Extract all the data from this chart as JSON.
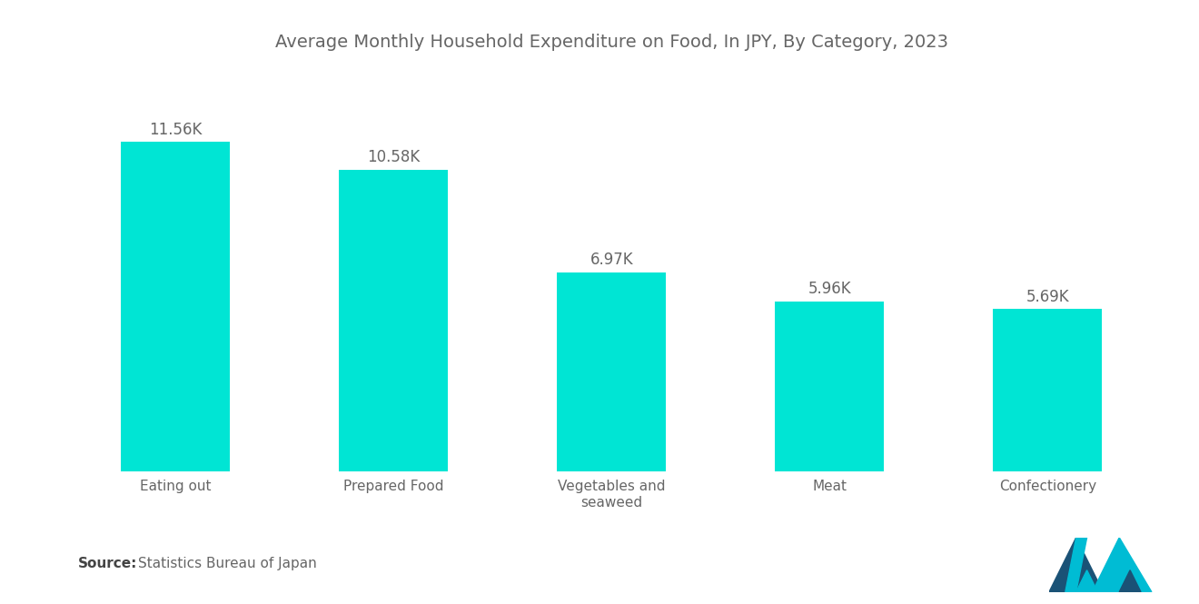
{
  "title": "Average Monthly Household Expenditure on Food, In JPY, By Category, 2023",
  "categories": [
    "Eating out",
    "Prepared Food",
    "Vegetables and\nseaweed",
    "Meat",
    "Confectionery"
  ],
  "values": [
    11560,
    10580,
    6970,
    5960,
    5690
  ],
  "labels": [
    "11.56K",
    "10.58K",
    "6.97K",
    "5.96K",
    "5.69K"
  ],
  "bar_color": "#00E5D4",
  "background_color": "#ffffff",
  "title_color": "#666666",
  "label_color": "#666666",
  "tick_color": "#666666",
  "source_bold_color": "#444444",
  "source_text": "Statistics Bureau of Japan",
  "source_label": "Source:",
  "title_fontsize": 14,
  "label_fontsize": 12,
  "tick_fontsize": 11,
  "source_fontsize": 11,
  "ylim": [
    0,
    14000
  ],
  "bar_width": 0.5,
  "logo_dark": "#1a5276",
  "logo_teal": "#00bcd4"
}
